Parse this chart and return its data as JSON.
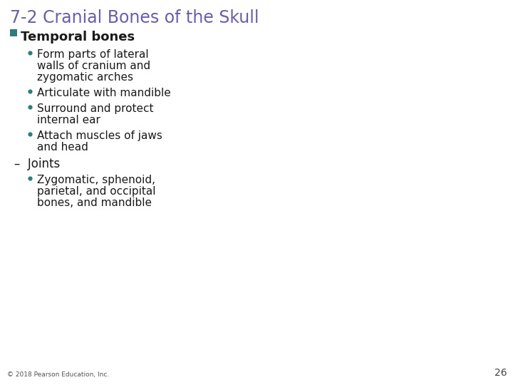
{
  "title": "7-2 Cranial Bones of the Skull",
  "title_color": "#6B5EA8",
  "title_fontsize": 17,
  "background_color": "#FFFFFF",
  "bullet_color": "#2E7D7D",
  "text_color": "#1A1A1A",
  "section_marker_color": "#2E7D7D",
  "footer_text": "© 2018 Pearson Education, Inc.",
  "page_number": "26",
  "content_fontsize": 11,
  "section_fontsize": 13,
  "dash_fontsize": 12,
  "content": [
    {
      "level": 0,
      "type": "section",
      "text": "Temporal bones",
      "bold": true
    },
    {
      "level": 1,
      "type": "bullet",
      "text": "Form parts of lateral\nwalls of cranium and\nzygomatic arches"
    },
    {
      "level": 1,
      "type": "bullet",
      "text": "Articulate with mandible"
    },
    {
      "level": 1,
      "type": "bullet",
      "text": "Surround and protect\ninternal ear"
    },
    {
      "level": 1,
      "type": "bullet",
      "text": "Attach muscles of jaws\nand head"
    },
    {
      "level": 0,
      "type": "dash",
      "text": "Joints"
    },
    {
      "level": 1,
      "type": "bullet",
      "text": "Zygomatic, sphenoid,\nparietal, and occipital\nbones, and mandible"
    }
  ]
}
